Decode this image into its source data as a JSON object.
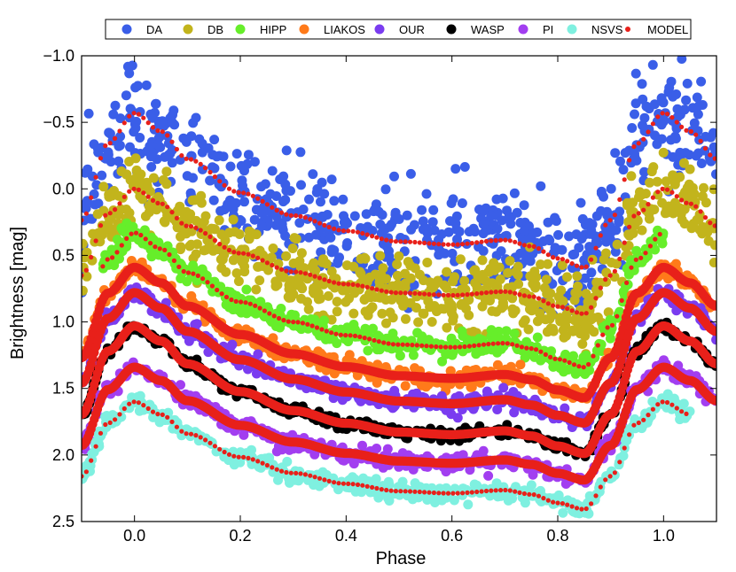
{
  "chart_data": {
    "type": "scatter",
    "title": "",
    "xlabel": "Phase",
    "ylabel": "Brightness [mag]",
    "xlim": [
      -0.1,
      1.1
    ],
    "ylim": [
      -1.0,
      2.5
    ],
    "y_inverted": true,
    "xticks": [
      0.0,
      0.2,
      0.4,
      0.6,
      0.8,
      1.0
    ],
    "xtick_labels": [
      "0.0",
      "0.2",
      "0.4",
      "0.6",
      "0.8",
      "1.0"
    ],
    "yticks": [
      -1.0,
      -0.5,
      0.0,
      0.5,
      1.0,
      1.5,
      2.0,
      2.5
    ],
    "ytick_labels": [
      "−1.0",
      "−0.5",
      "0.0",
      "0.5",
      "1.0",
      "1.5",
      "2.0",
      "2.5"
    ],
    "legend_position": "top",
    "curve_profile": {
      "phase": [
        0.0,
        0.05,
        0.1,
        0.2,
        0.3,
        0.4,
        0.5,
        0.6,
        0.7,
        0.75,
        0.8,
        0.85,
        0.9,
        0.95,
        1.0
      ],
      "relative_mag": [
        0.0,
        0.12,
        0.3,
        0.52,
        0.67,
        0.77,
        0.84,
        0.86,
        0.83,
        0.87,
        0.95,
        1.01,
        0.7,
        0.2,
        0.0
      ]
    },
    "series": [
      {
        "name": "DA",
        "color": "#3a5ee8",
        "marker": "large-dot",
        "offset": -0.57,
        "amplitude": 1.15,
        "scatter": 0.2,
        "phase_range": [
          -0.1,
          1.1
        ]
      },
      {
        "name": "DB",
        "color": "#c2b41c",
        "marker": "large-dot",
        "offset": 0.0,
        "amplitude": 0.93,
        "scatter": 0.13,
        "phase_range": [
          -0.1,
          1.1
        ]
      },
      {
        "name": "HIPP",
        "color": "#66ee2a",
        "marker": "large-dot",
        "offset": 0.33,
        "amplitude": 1.0,
        "scatter": 0.04,
        "phase_range": [
          -0.06,
          1.0
        ]
      },
      {
        "name": "LIAKOS",
        "color": "#ff7a1a",
        "marker": "large-dot",
        "offset": 0.59,
        "amplitude": 0.97,
        "scatter": 0.03,
        "phase_range": [
          -0.1,
          1.1
        ]
      },
      {
        "name": "OUR",
        "color": "#7a3cf0",
        "marker": "large-dot",
        "offset": 0.78,
        "amplitude": 0.97,
        "scatter": 0.03,
        "phase_range": [
          -0.1,
          1.1
        ]
      },
      {
        "name": "WASP",
        "color": "#000000",
        "marker": "large-dot",
        "offset": 1.03,
        "amplitude": 0.95,
        "scatter": 0.02,
        "phase_range": [
          -0.1,
          1.1
        ]
      },
      {
        "name": "PI",
        "color": "#a23ef0",
        "marker": "large-dot",
        "offset": 1.34,
        "amplitude": 0.84,
        "scatter": 0.03,
        "phase_range": [
          -0.1,
          1.1
        ]
      },
      {
        "name": "NSVS",
        "color": "#7ff0e0",
        "marker": "large-dot",
        "offset": 1.6,
        "amplitude": 0.8,
        "scatter": 0.03,
        "phase_range": [
          -0.1,
          1.05
        ]
      },
      {
        "name": "MODEL",
        "color": "#e8201a",
        "marker": "small-dot",
        "offset": null,
        "amplitude": null,
        "scatter": 0.0,
        "phase_range": [
          -0.1,
          1.1
        ]
      }
    ]
  }
}
